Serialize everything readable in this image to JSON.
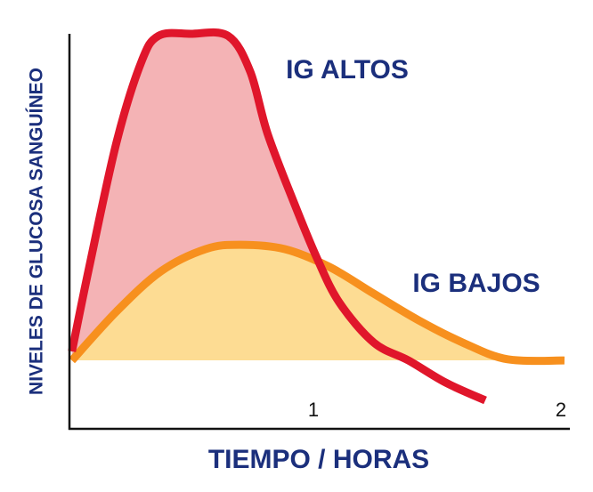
{
  "chart_data": {
    "type": "line",
    "x_label": "TIEMPO / HORAS",
    "y_label": "NIVELES DE GLUCOSA SANGUÍNEO",
    "xlim": [
      0,
      2
    ],
    "xticks": [
      1,
      2
    ],
    "ylim": [
      0,
      100
    ],
    "series": [
      {
        "name": "IG ALTOS",
        "color": "#e0162b",
        "fill": "#f4b3b5",
        "x": [
          0.01,
          0.08,
          0.19,
          0.29,
          0.36,
          0.49,
          0.64,
          0.73,
          0.8,
          0.91,
          1.0,
          1.09,
          1.23,
          1.37,
          1.52,
          1.68
        ],
        "values": [
          19.6,
          41,
          72.5,
          92.8,
          99.5,
          100,
          99.5,
          90.5,
          74.8,
          56.8,
          43.2,
          32,
          21.8,
          17.3,
          11.7,
          7.2
        ]
      },
      {
        "name": "IG BAJOS",
        "color": "#f7901e",
        "fill": "#fddc93",
        "x": [
          0.01,
          0.19,
          0.37,
          0.55,
          0.69,
          0.87,
          1.05,
          1.23,
          1.41,
          1.59,
          1.77,
          2.0
        ],
        "values": [
          17.3,
          29.7,
          39.9,
          45.5,
          46.6,
          45.5,
          41,
          34.2,
          27.5,
          21.8,
          17.6,
          17.3
        ]
      }
    ]
  }
}
